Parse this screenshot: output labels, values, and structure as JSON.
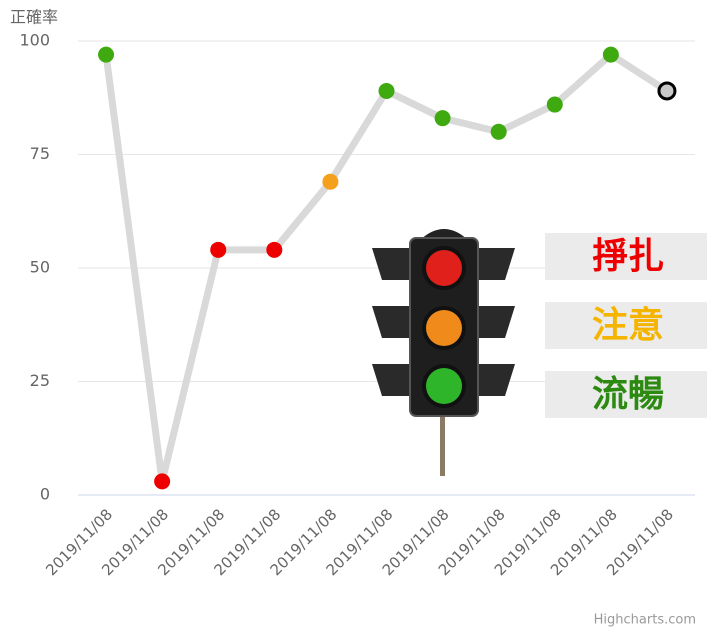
{
  "chart_data": {
    "type": "line",
    "y_axis_title": "正確率",
    "categories": [
      "2019/11/08",
      "2019/11/08",
      "2019/11/08",
      "2019/11/08",
      "2019/11/08",
      "2019/11/08",
      "2019/11/08",
      "2019/11/08",
      "2019/11/08",
      "2019/11/08",
      "2019/11/08"
    ],
    "values": [
      97,
      3,
      54,
      54,
      69,
      89,
      83,
      80,
      86,
      97,
      89
    ],
    "point_colors": [
      "#3fa910",
      "#ee0000",
      "#ee0000",
      "#ee0000",
      "#f5a01a",
      "#3fa910",
      "#3fa910",
      "#3fa910",
      "#3fa910",
      "#3fa910",
      "#c8c8c8"
    ],
    "line_color": "#d9d9d9",
    "selected_index": 10,
    "selected_color": "#000000",
    "ylim": [
      0,
      100
    ],
    "yticks": [
      0,
      25,
      50,
      75,
      100
    ],
    "grid": true,
    "status_labels": [
      {
        "label": "掙扎",
        "color": "#ee0000"
      },
      {
        "label": "注意",
        "color": "#f5b400"
      },
      {
        "label": "流暢",
        "color": "#2d8a10"
      }
    ],
    "credit": "Highcharts.com"
  }
}
